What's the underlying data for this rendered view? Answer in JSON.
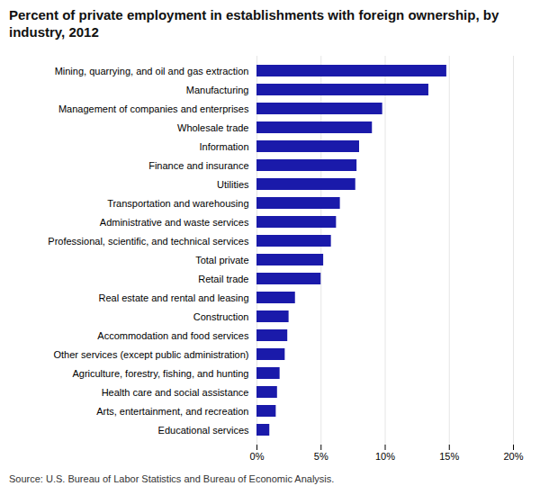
{
  "chart_data": {
    "type": "bar",
    "orientation": "horizontal",
    "title": "Percent of private employment in establishments with foreign ownership, by\nindustry, 2012",
    "source": "Source: U.S. Bureau of Labor Statistics and Bureau of Economic Analysis.",
    "categories": [
      "Mining, quarrying, and oil and gas extraction",
      "Manufacturing",
      "Management of companies and enterprises",
      "Wholesale trade",
      "Information",
      "Finance and insurance",
      "Utilities",
      "Transportation and warehousing",
      "Administrative and waste services",
      "Professional, scientific, and technical services",
      "Total private",
      "Retail trade",
      "Real estate and rental and leasing",
      "Construction",
      "Accommodation and food services",
      "Other services (except public administration)",
      "Agriculture, forestry, fishing, and hunting",
      "Health care and social assistance",
      "Arts, entertainment, and recreation",
      "Educational services"
    ],
    "values": [
      14.8,
      13.4,
      9.8,
      9.0,
      8.0,
      7.8,
      7.7,
      6.5,
      6.2,
      5.8,
      5.2,
      5.0,
      3.0,
      2.5,
      2.4,
      2.2,
      1.8,
      1.6,
      1.5,
      1.0
    ],
    "color": "#1a1aaa",
    "xlim": [
      0,
      20
    ],
    "xticks": [
      {
        "value": 0,
        "label": "0%"
      },
      {
        "value": 5,
        "label": "5%"
      },
      {
        "value": 10,
        "label": "10%"
      },
      {
        "value": 15,
        "label": "15%"
      },
      {
        "value": 20,
        "label": "20%"
      }
    ],
    "grid": true
  }
}
